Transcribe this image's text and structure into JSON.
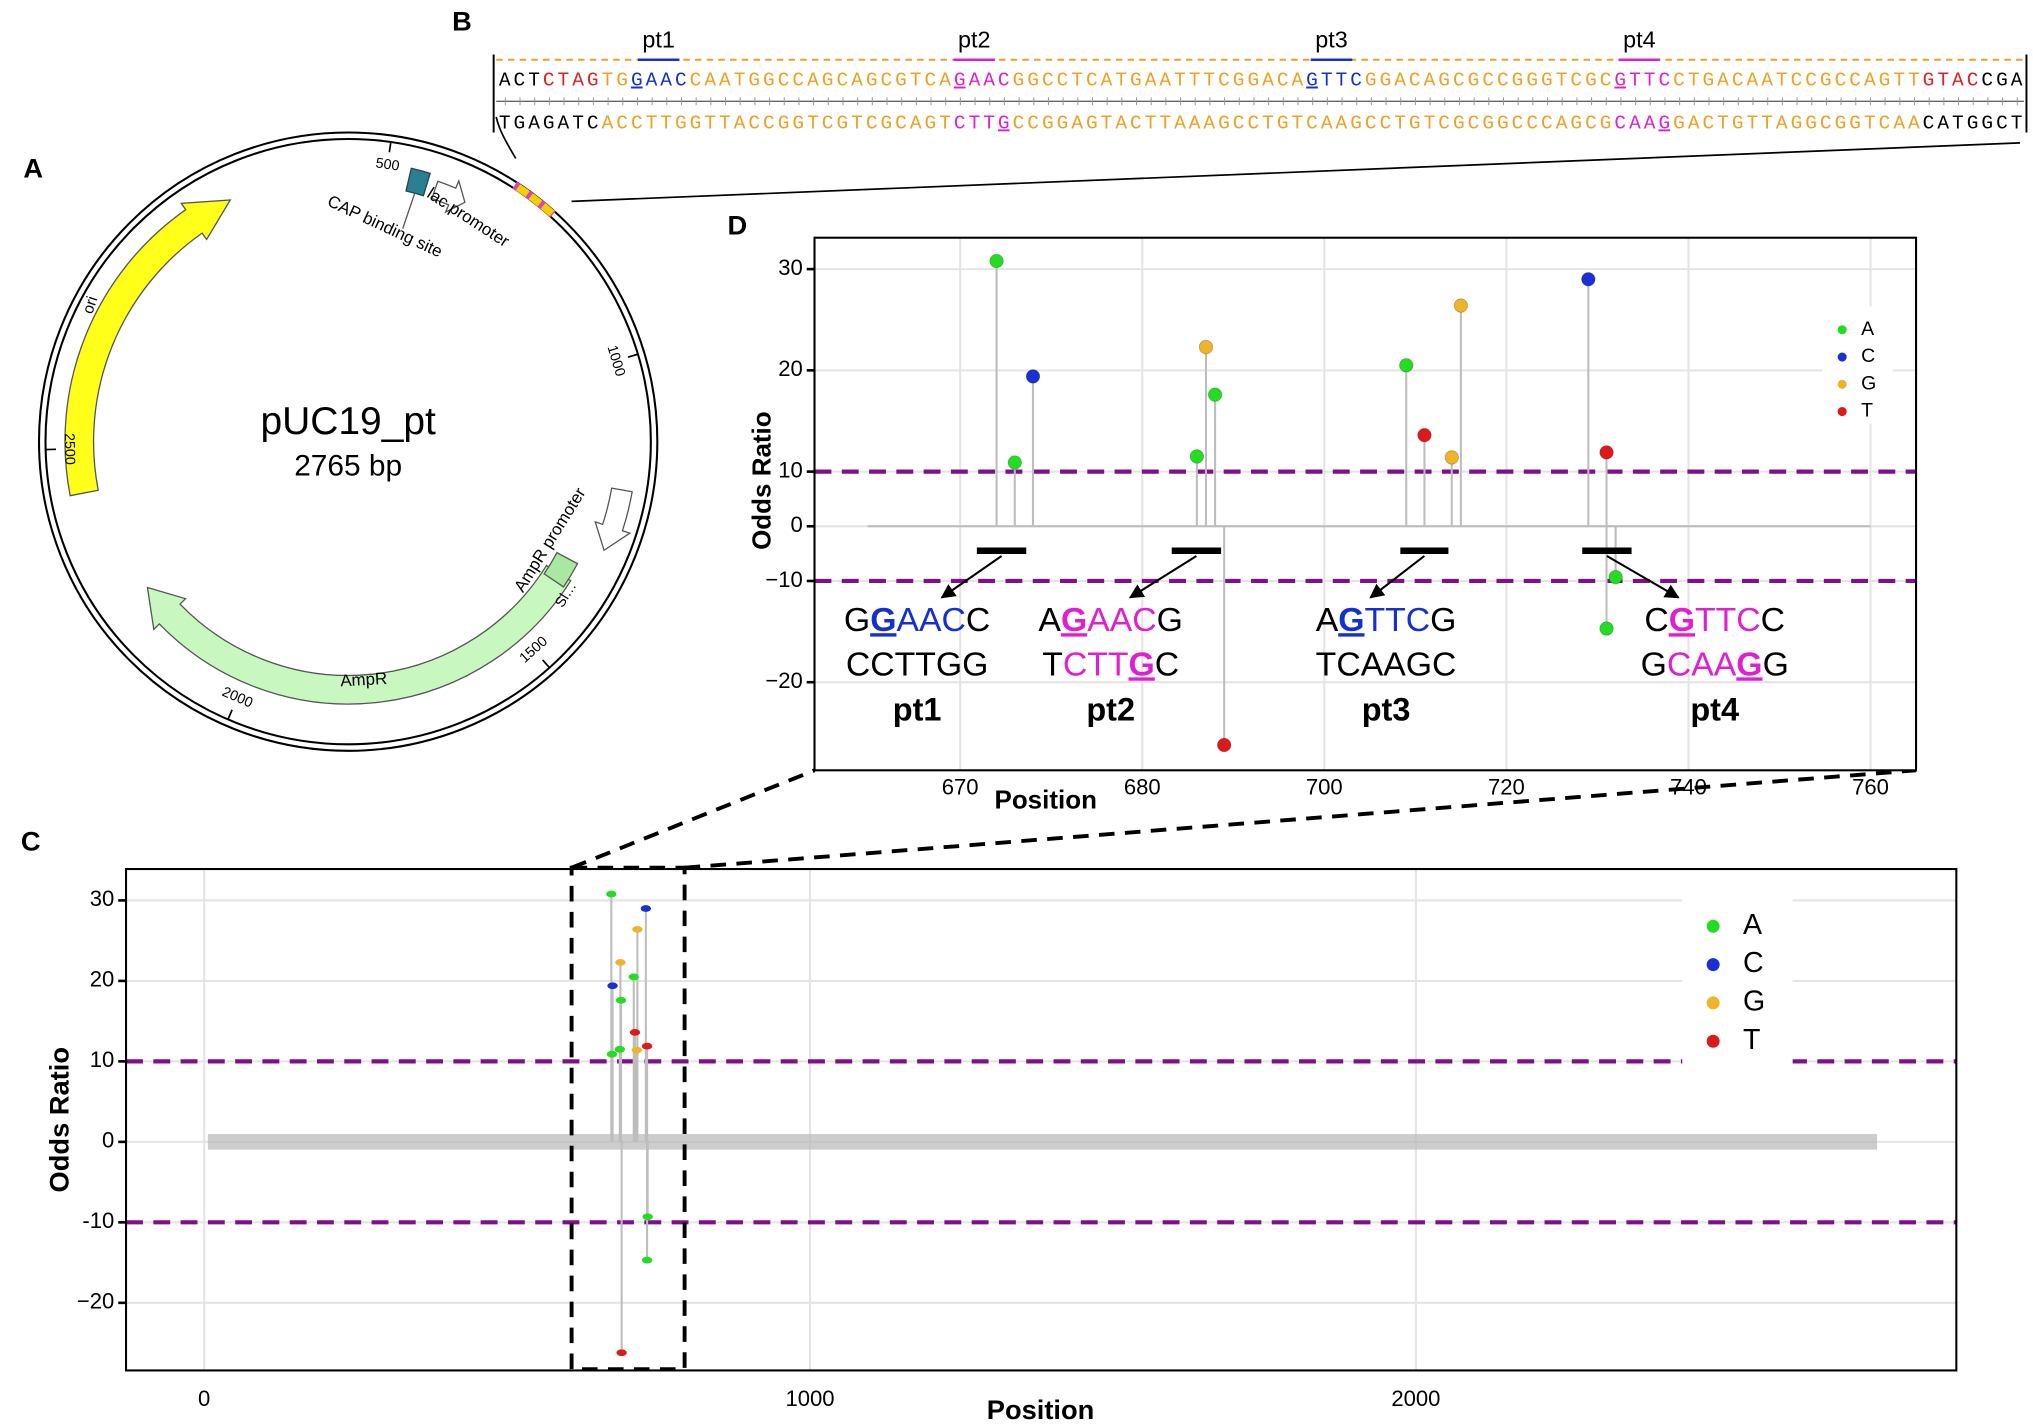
{
  "panels": [
    "A",
    "B",
    "C",
    "D"
  ],
  "plasmid": {
    "name": "pUC19_pt",
    "size": "2765 bp",
    "ticks": [
      500,
      1000,
      1500,
      2000,
      2500
    ],
    "features": {
      "ori": "ori",
      "ampr": "AmpR",
      "ampr_promoter": "AmpR promoter",
      "sl": "Sl…",
      "lac": "lac promoter",
      "cap": "CAP binding site"
    }
  },
  "sequence": {
    "labels": [
      "pt1",
      "pt2",
      "pt3",
      "pt4"
    ],
    "top": "ACTCTAGTGGAACCAATGGCCAGCAGCGTCAGAACGGCCTCATGAATTTCGGACAGTTCGGACAGCGCCGGGTCGCGTTCCTGACAATCCGCCAGTTGTACCGA",
    "bottom": "TGAGATCACCTTGGTTACCGGTCGTCGCAGTCTTGCCGGAGTACTTAAAGCCTGTCAAGCCTGTCGCGGCCCAGCGCAAGGACTGTTAGGCGGTCAACATGGCT"
  },
  "chart_data": [
    {
      "type": "scatter",
      "xlabel": "Position",
      "ylabel": "Odds Ratio",
      "xscale": "linear",
      "yscale": "linear",
      "xlim": [
        -129,
        2892
      ],
      "xticks": [
        0,
        1000,
        2000
      ],
      "ylim": [
        -28.4,
        33.9
      ],
      "yticks": [
        {
          "value": -20,
          "label": "−20"
        },
        {
          "value": -10,
          "label": "-10"
        },
        0,
        10,
        20,
        30
      ],
      "grid": true,
      "hlines": [
        10,
        -10
      ],
      "hline_color": "#7f0f8a",
      "legend": "top-right",
      "series": [
        {
          "name": "A",
          "color": "#22dd22",
          "x": [
            672,
            673,
            686,
            688,
            709,
            731,
            732
          ],
          "values": [
            30.8,
            10.9,
            11.5,
            17.6,
            20.5,
            -14.7,
            -9.3
          ]
        },
        {
          "name": "C",
          "color": "#1a2fd6",
          "x": [
            674,
            729
          ],
          "values": [
            19.4,
            29.0
          ]
        },
        {
          "name": "G",
          "color": "#f0b429",
          "x": [
            687,
            714,
            715
          ],
          "values": [
            22.3,
            11.4,
            26.4
          ]
        },
        {
          "name": "T",
          "color": "#dd1a1a",
          "x": [
            689,
            711,
            731
          ],
          "values": [
            -26.2,
            13.6,
            11.9
          ]
        }
      ]
    },
    {
      "type": "scatter",
      "xlabel": "Position",
      "ylabel": "Odds Ratio",
      "xscale": "piecewise",
      "yscale": "piecewise",
      "xlim": [
        662,
        765
      ],
      "xticks": [
        670,
        680,
        700,
        720,
        740,
        760
      ],
      "ylim": [
        -28.7,
        33.1
      ],
      "yticks": [
        {
          "value": -20,
          "label": "−20"
        },
        {
          "value": -10,
          "label": "−10"
        },
        0,
        10,
        20,
        30
      ],
      "grid": true,
      "hlines": [
        10,
        -10
      ],
      "hline_color": "#7f0f8a",
      "legend": "top-right",
      "series": [
        {
          "name": "A",
          "color": "#22dd22",
          "x": [
            672,
            673,
            686,
            688,
            709,
            731,
            732
          ],
          "values": [
            30.8,
            10.9,
            11.5,
            17.6,
            20.5,
            -14.7,
            -9.3
          ]
        },
        {
          "name": "C",
          "color": "#1a2fd6",
          "x": [
            674,
            729
          ],
          "values": [
            19.4,
            29.0
          ]
        },
        {
          "name": "G",
          "color": "#f0b429",
          "x": [
            687,
            714,
            715
          ],
          "values": [
            22.3,
            11.4,
            26.4
          ]
        },
        {
          "name": "T",
          "color": "#dd1a1a",
          "x": [
            689,
            711,
            731
          ],
          "values": [
            -26.2,
            13.6,
            11.9
          ]
        }
      ],
      "motifs": [
        {
          "label": "pt1",
          "top": "GGAACC",
          "bottom": "CCTTGG"
        },
        {
          "label": "pt2",
          "top": "AGAACG",
          "bottom": "TCTTGC"
        },
        {
          "label": "pt3",
          "top": "AGTTCG",
          "bottom": "TCAAGC"
        },
        {
          "label": "pt4",
          "top": "CGTTCC",
          "bottom": "GCAAGG"
        }
      ]
    }
  ]
}
